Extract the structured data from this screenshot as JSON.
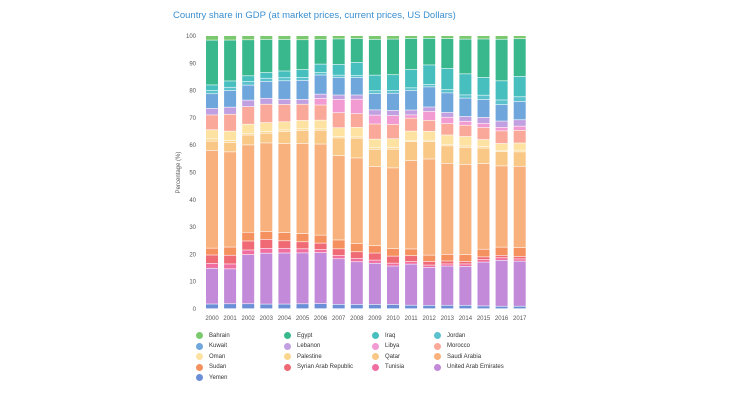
{
  "chart_data": {
    "type": "bar",
    "stacked": true,
    "title": "Country share in GDP (at market prices, current prices, US Dollars)",
    "xlabel": "",
    "ylabel": "Percentage (%)",
    "ylim": [
      0,
      100
    ],
    "yticks": [
      0,
      10,
      20,
      30,
      40,
      50,
      60,
      70,
      80,
      90,
      100
    ],
    "grid": false,
    "legend_position": "bottom",
    "categories": [
      "2000",
      "2001",
      "2002",
      "2003",
      "2004",
      "2005",
      "2006",
      "2007",
      "2008",
      "2009",
      "2010",
      "2011",
      "2012",
      "2013",
      "2014",
      "2015",
      "2016",
      "2017"
    ],
    "series": [
      {
        "name": "Yemen",
        "color": "#6a8fd6",
        "values": [
          1.7,
          1.8,
          1.8,
          1.7,
          1.7,
          1.8,
          1.9,
          1.6,
          1.6,
          1.6,
          1.6,
          1.3,
          1.3,
          1.3,
          1.3,
          1.0,
          0.9,
          0.9
        ]
      },
      {
        "name": "United Arab Emirates",
        "color": "#c28ad8",
        "values": [
          13.0,
          12.8,
          18.0,
          18.8,
          18.8,
          18.8,
          19.2,
          17.0,
          16.2,
          15.8,
          14.8,
          15.2,
          14.5,
          14.8,
          14.8,
          16.0,
          16.8,
          16.3
        ]
      },
      {
        "name": "Tunisia",
        "color": "#f16fa0",
        "values": [
          1.8,
          1.8,
          1.7,
          1.8,
          1.7,
          1.5,
          1.2,
          1.2,
          1.2,
          1.2,
          1.1,
          0.9,
          0.9,
          0.8,
          0.9,
          0.9,
          0.9,
          0.8
        ]
      },
      {
        "name": "Syrian Arab Republic",
        "color": "#f06a75",
        "values": [
          3.0,
          3.2,
          3.3,
          3.3,
          2.8,
          2.6,
          2.4,
          2.5,
          2.6,
          2.7,
          2.7,
          2.2,
          1.4,
          1.1,
          1.0,
          1.0,
          0.9,
          0.9
        ]
      },
      {
        "name": "Sudan",
        "color": "#f5915e",
        "values": [
          2.5,
          3.0,
          3.2,
          2.9,
          3.0,
          3.0,
          3.0,
          3.3,
          3.1,
          2.8,
          2.9,
          2.5,
          2.4,
          2.5,
          2.5,
          2.8,
          3.0,
          3.2
        ]
      },
      {
        "name": "Saudi Arabia",
        "color": "#f8b07c",
        "values": [
          35.5,
          34.9,
          32.0,
          32.7,
          32.8,
          33.3,
          34.3,
          31.4,
          32.5,
          30.3,
          31.0,
          32.7,
          36.8,
          34.4,
          34.3,
          31.2,
          29.7,
          29.4
        ]
      },
      {
        "name": "Qatar",
        "color": "#f9c887",
        "values": [
          3.4,
          3.4,
          3.6,
          3.6,
          4.4,
          4.8,
          5.2,
          6.6,
          7.5,
          6.6,
          7.2,
          7.0,
          6.7,
          6.6,
          6.5,
          5.7,
          5.2,
          5.2
        ]
      },
      {
        "name": "Palestine",
        "color": "#fbd68e",
        "values": [
          0.8,
          0.7,
          0.6,
          0.6,
          0.6,
          0.6,
          0.5,
          0.5,
          0.5,
          0.6,
          0.6,
          0.5,
          0.5,
          0.6,
          0.5,
          0.5,
          0.5,
          0.6
        ]
      },
      {
        "name": "Oman",
        "color": "#fde2a2",
        "values": [
          3.3,
          3.5,
          3.4,
          3.3,
          3.0,
          3.1,
          3.3,
          3.3,
          3.6,
          3.3,
          3.4,
          3.4,
          3.4,
          3.5,
          3.6,
          2.6,
          2.5,
          2.6
        ]
      },
      {
        "name": "Morocco",
        "color": "#f9a899",
        "values": [
          5.4,
          6.2,
          6.4,
          6.8,
          6.4,
          6.0,
          5.7,
          5.6,
          5.2,
          5.8,
          5.5,
          4.8,
          4.2,
          4.3,
          4.3,
          4.4,
          4.6,
          4.6
        ]
      },
      {
        "name": "Libya",
        "color": "#f29ad2",
        "values": [
          0.0,
          0.0,
          0.0,
          0.0,
          0.0,
          0.0,
          2.5,
          5.0,
          5.5,
          3.4,
          3.4,
          1.2,
          3.4,
          2.4,
          1.5,
          1.5,
          1.3,
          1.5
        ]
      },
      {
        "name": "Lebanon",
        "color": "#c0a0e0",
        "values": [
          2.4,
          2.6,
          2.4,
          2.2,
          1.9,
          1.8,
          1.6,
          1.6,
          1.6,
          2.0,
          2.0,
          1.8,
          1.7,
          1.8,
          1.8,
          2.2,
          2.3,
          2.3
        ]
      },
      {
        "name": "Kuwait",
        "color": "#6fa7dc",
        "values": [
          5.3,
          6.1,
          5.5,
          6.2,
          6.8,
          7.0,
          7.2,
          6.5,
          6.6,
          6.2,
          6.6,
          7.2,
          7.7,
          7.4,
          7.0,
          6.5,
          6.0,
          6.6
        ]
      },
      {
        "name": "Jordan",
        "color": "#5ac1cd",
        "values": [
          1.2,
          1.2,
          1.3,
          1.2,
          1.1,
          1.0,
          0.9,
          0.9,
          0.8,
          1.1,
          1.1,
          1.0,
          1.0,
          1.2,
          1.2,
          1.6,
          1.7,
          1.7
        ]
      },
      {
        "name": "Iraq",
        "color": "#47bfbf",
        "values": [
          2.0,
          2.3,
          2.1,
          2.1,
          2.5,
          3.0,
          3.2,
          4.0,
          5.0,
          6.0,
          6.0,
          6.8,
          7.4,
          8.0,
          8.0,
          6.5,
          7.0,
          7.4
        ]
      },
      {
        "name": "Egypt",
        "color": "#39b88e",
        "values": [
          16.3,
          15.0,
          13.2,
          12.2,
          11.6,
          11.0,
          9.3,
          9.5,
          9.0,
          13.7,
          13.7,
          11.5,
          10.2,
          11.3,
          13.2,
          14.0,
          15.2,
          13.6
        ]
      },
      {
        "name": "Bahrain",
        "color": "#7bc96f",
        "values": [
          1.6,
          1.6,
          1.5,
          1.4,
          1.4,
          1.5,
          1.4,
          1.2,
          1.1,
          1.4,
          1.3,
          1.0,
          1.0,
          1.1,
          1.3,
          1.2,
          1.3,
          1.1
        ]
      }
    ]
  },
  "legend": {
    "columns": [
      [
        "Bahrain",
        "Kuwait",
        "Oman",
        "Sudan",
        "Yemen"
      ],
      [
        "Egypt",
        "Lebanon",
        "Palestine",
        "Syrian Arab Republic"
      ],
      [
        "Iraq",
        "Libya",
        "Qatar",
        "Tunisia"
      ],
      [
        "Jordan",
        "Morocco",
        "Saudi Arabia",
        "United Arab Emirates"
      ]
    ]
  }
}
